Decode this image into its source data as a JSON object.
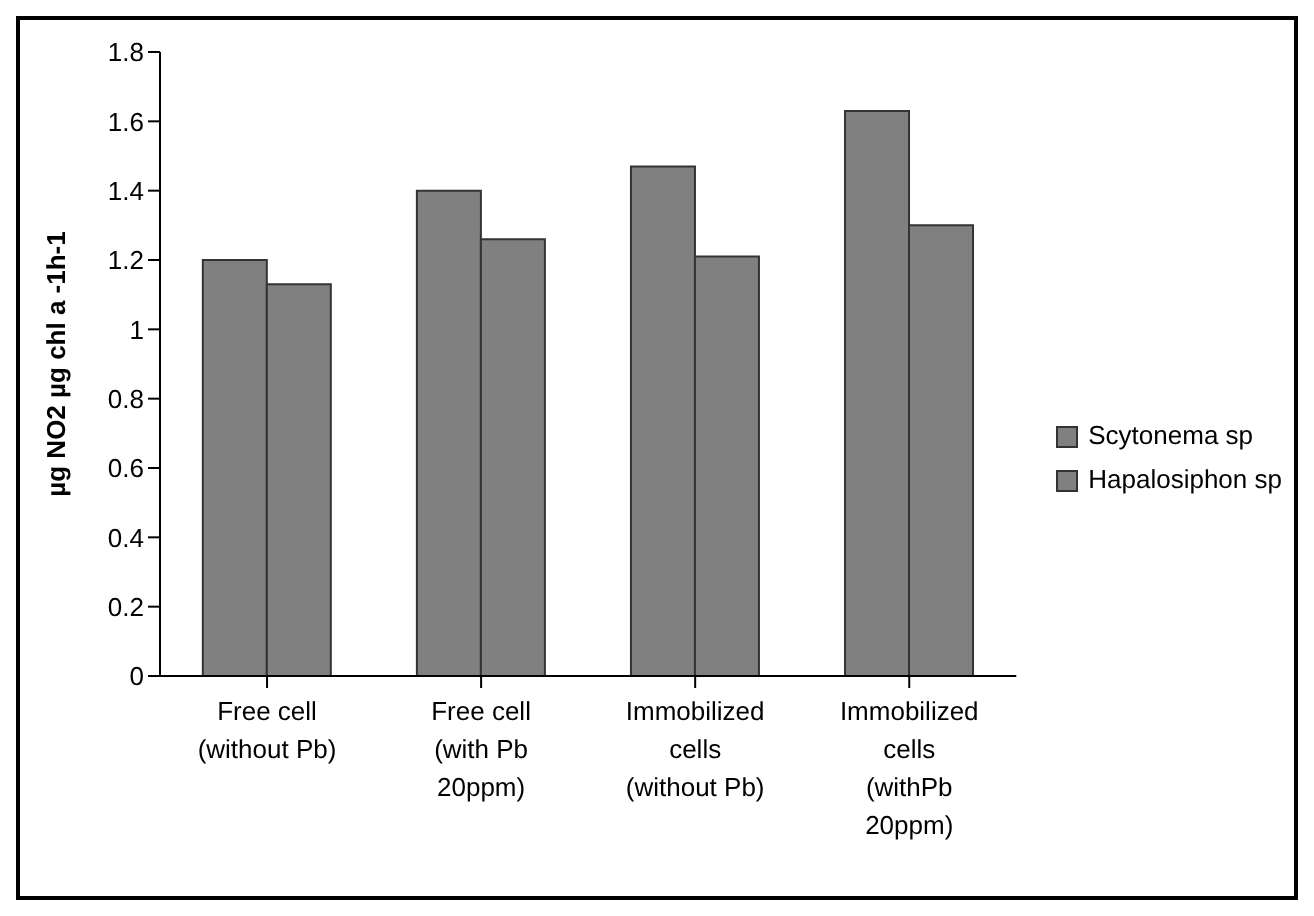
{
  "chart_data": {
    "type": "bar",
    "ylabel": "µg NO2 µg chl a -1h-1",
    "categories": [
      "Free cell (without Pb)",
      "Free cell (with Pb 20ppm)",
      "Immobilized cells (without Pb)",
      "Immobilized cells (withPb 20ppm)"
    ],
    "series": [
      {
        "name": "Scytonema sp",
        "color": "#808080",
        "values": [
          1.2,
          1.4,
          1.47,
          1.63
        ]
      },
      {
        "name": "Hapalosiphon sp",
        "color": "#808080",
        "values": [
          1.13,
          1.26,
          1.21,
          1.3
        ]
      }
    ],
    "ylim": [
      0,
      1.8
    ],
    "yticks": [
      0,
      0.2,
      0.4,
      0.6,
      0.8,
      1,
      1.2,
      1.4,
      1.6,
      1.8
    ],
    "grid": false,
    "legend": "right"
  }
}
